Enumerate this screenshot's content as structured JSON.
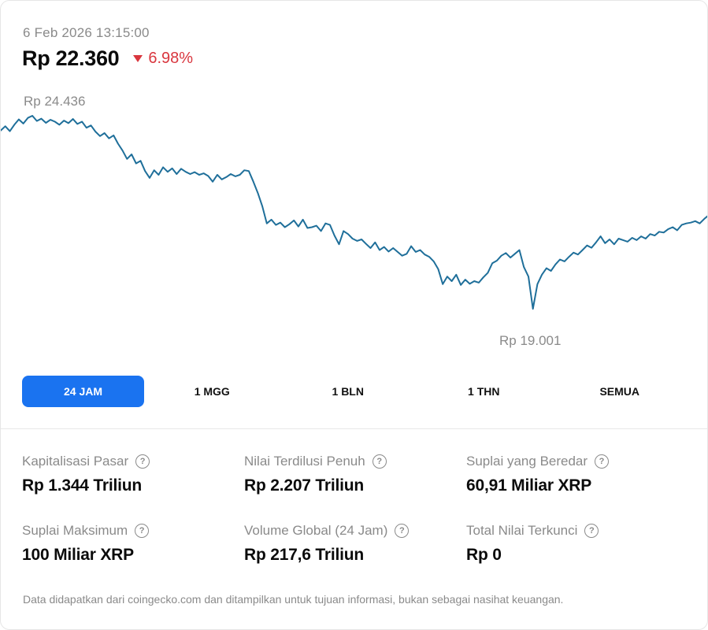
{
  "header": {
    "timestamp": "6 Feb 2026 13:15:00",
    "price": "Rp 22.360",
    "change": "6.98%",
    "change_direction": "down",
    "down_color": "#d9363e"
  },
  "chart_data": {
    "type": "line",
    "series_color": "#1f6f9a",
    "high_label": "Rp 24.436",
    "low_label": "Rp 19.001",
    "ylim": [
      19001,
      24436
    ],
    "grid": false,
    "values": [
      24050,
      24160,
      24030,
      24200,
      24340,
      24230,
      24380,
      24436,
      24300,
      24360,
      24250,
      24330,
      24280,
      24200,
      24310,
      24240,
      24350,
      24220,
      24280,
      24120,
      24180,
      24020,
      23900,
      23980,
      23840,
      23920,
      23700,
      23520,
      23300,
      23420,
      23180,
      23250,
      22980,
      22800,
      23000,
      22880,
      23080,
      22960,
      23050,
      22900,
      23040,
      22960,
      22900,
      22950,
      22880,
      22920,
      22850,
      22700,
      22880,
      22760,
      22820,
      22900,
      22840,
      22880,
      23000,
      22980,
      22700,
      22400,
      22050,
      21600,
      21700,
      21560,
      21620,
      21500,
      21580,
      21680,
      21520,
      21700,
      21480,
      21500,
      21540,
      21400,
      21600,
      21560,
      21280,
      21050,
      21400,
      21320,
      21200,
      21140,
      21180,
      21060,
      20950,
      21100,
      20900,
      20980,
      20860,
      20950,
      20850,
      20750,
      20800,
      21000,
      20850,
      20900,
      20780,
      20720,
      20600,
      20400,
      20000,
      20200,
      20080,
      20250,
      19980,
      20120,
      20010,
      20080,
      20040,
      20180,
      20300,
      20550,
      20620,
      20750,
      20820,
      20700,
      20800,
      20900,
      20450,
      20200,
      19350,
      20000,
      20250,
      20420,
      20350,
      20520,
      20650,
      20600,
      20720,
      20830,
      20780,
      20900,
      21020,
      20960,
      21100,
      21260,
      21080,
      21180,
      21050,
      21200,
      21160,
      21120,
      21220,
      21160,
      21260,
      21200,
      21320,
      21280,
      21380,
      21360,
      21450,
      21500,
      21420,
      21560,
      21600,
      21620,
      21660,
      21600,
      21720,
      21820
    ]
  },
  "ranges": [
    {
      "label": "24 JAM",
      "active": true
    },
    {
      "label": "1 MGG",
      "active": false
    },
    {
      "label": "1 BLN",
      "active": false
    },
    {
      "label": "1 THN",
      "active": false
    },
    {
      "label": "SEMUA",
      "active": false
    }
  ],
  "stats": [
    {
      "label": "Kapitalisasi Pasar",
      "value": "Rp 1.344 Triliun"
    },
    {
      "label": "Nilai Terdilusi Penuh",
      "value": "Rp 2.207 Triliun"
    },
    {
      "label": "Suplai yang Beredar",
      "value": "60,91 Miliar XRP"
    },
    {
      "label": "Suplai Maksimum",
      "value": "100 Miliar XRP"
    },
    {
      "label": "Volume Global (24 Jam)",
      "value": "Rp 217,6 Triliun"
    },
    {
      "label": "Total Nilai Terkunci",
      "value": "Rp 0"
    }
  ],
  "help_icon": "question-circle-icon",
  "accent_color": "#1a73f0",
  "disclaimer": "Data didapatkan dari coingecko.com dan ditampilkan untuk tujuan informasi, bukan sebagai nasihat keuangan."
}
